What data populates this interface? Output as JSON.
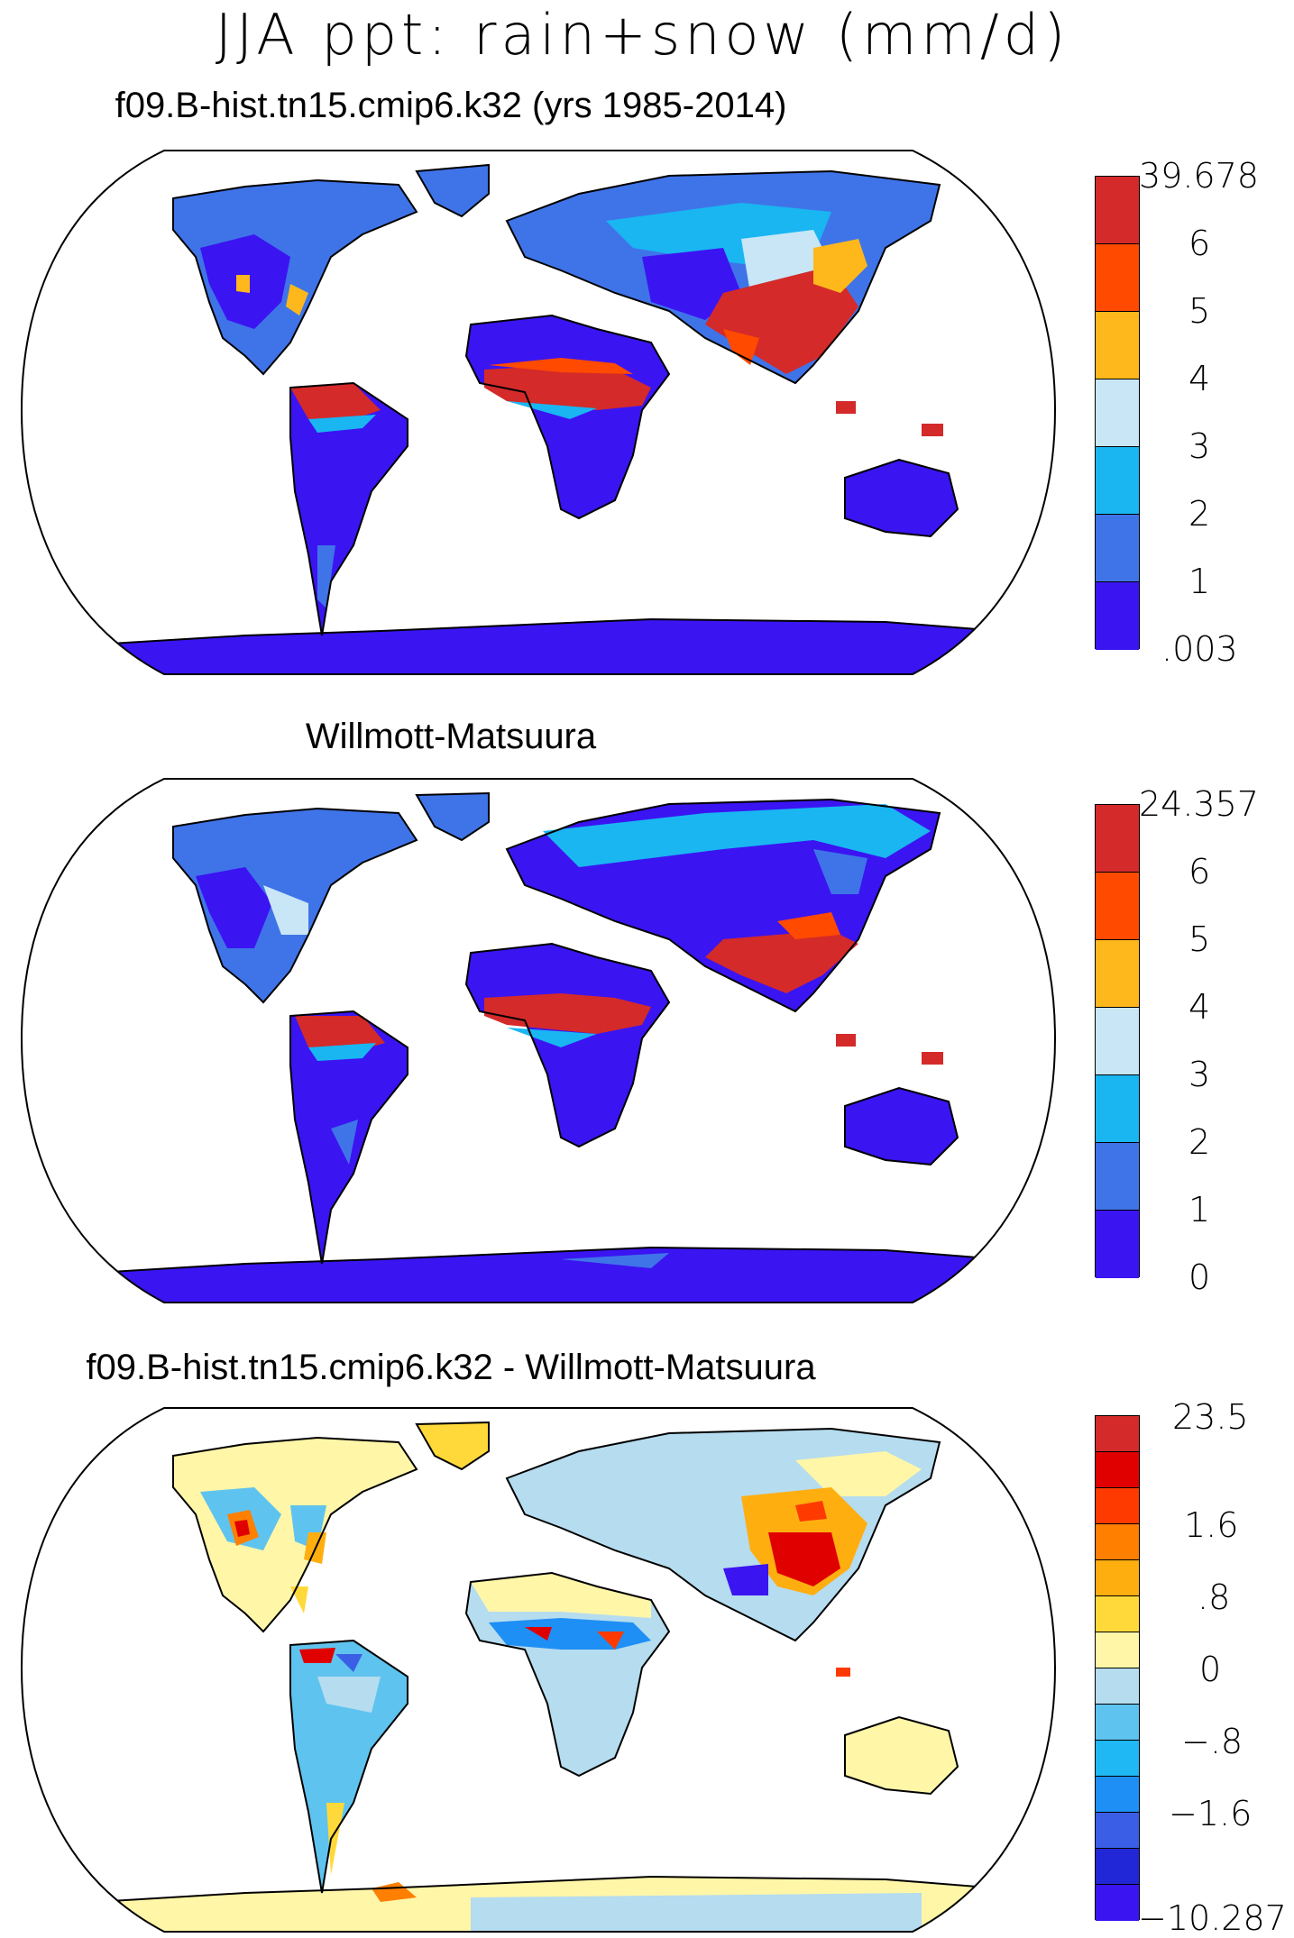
{
  "title": "JJA ppt: rain+snow (mm/d)",
  "panels": [
    {
      "title": "f09.B-hist.tn15.cmip6.k32 (yrs 1985-2014)",
      "colorbar": {
        "labels": [
          ".003",
          "1",
          "2",
          "3",
          "4",
          "5",
          "6",
          "39.678"
        ],
        "colors": [
          "#3b14f2",
          "#3f74e8",
          "#19b6f2",
          "#c8e6f5",
          "#ffb81c",
          "#ff4a00",
          "#d42a2a"
        ]
      }
    },
    {
      "title": "Willmott-Matsuura",
      "colorbar": {
        "labels": [
          "0",
          "1",
          "2",
          "3",
          "4",
          "5",
          "6",
          "24.357"
        ],
        "colors": [
          "#3b14f2",
          "#3f74e8",
          "#19b6f2",
          "#c8e6f5",
          "#ffb81c",
          "#ff4a00",
          "#d42a2a"
        ]
      }
    },
    {
      "title": "f09.B-hist.tn15.cmip6.k32 - Willmott-Matsuura",
      "colorbar": {
        "labels": [
          "−10.287",
          "−1.6",
          "−.8",
          "0",
          ".8",
          "1.6",
          "23.5"
        ],
        "colors": [
          "#3b14f2",
          "#2127d6",
          "#3a5fe6",
          "#1e8ff5",
          "#1fb8f5",
          "#5fc3ef",
          "#b5dcef",
          "#fff6a8",
          "#ffd93a",
          "#ffae10",
          "#ff7f00",
          "#ff3a00",
          "#e00000",
          "#d42a2a"
        ]
      }
    }
  ],
  "chart_data": [
    {
      "type": "heatmap",
      "title": "f09.B-hist.tn15.cmip6.k32 (yrs 1985-2014)",
      "levels": [
        0.003,
        1,
        2,
        3,
        4,
        5,
        6,
        39.678
      ],
      "colorbar_labels": [
        ".003",
        "1",
        "2",
        "3",
        "4",
        "5",
        "6",
        "39.678"
      ]
    },
    {
      "type": "heatmap",
      "title": "Willmott-Matsuura",
      "levels": [
        0,
        1,
        2,
        3,
        4,
        5,
        6,
        24.357
      ],
      "colorbar_labels": [
        "0",
        "1",
        "2",
        "3",
        "4",
        "5",
        "6",
        "24.357"
      ]
    },
    {
      "type": "heatmap",
      "title": "f09.B-hist.tn15.cmip6.k32 - Willmott-Matsuura",
      "levels": [
        -10.287,
        -1.6,
        -0.8,
        0,
        0.8,
        1.6,
        23.5
      ],
      "colorbar_labels": [
        "−10.287",
        "−1.6",
        "−.8",
        "0",
        ".8",
        "1.6",
        "23.5"
      ]
    }
  ]
}
